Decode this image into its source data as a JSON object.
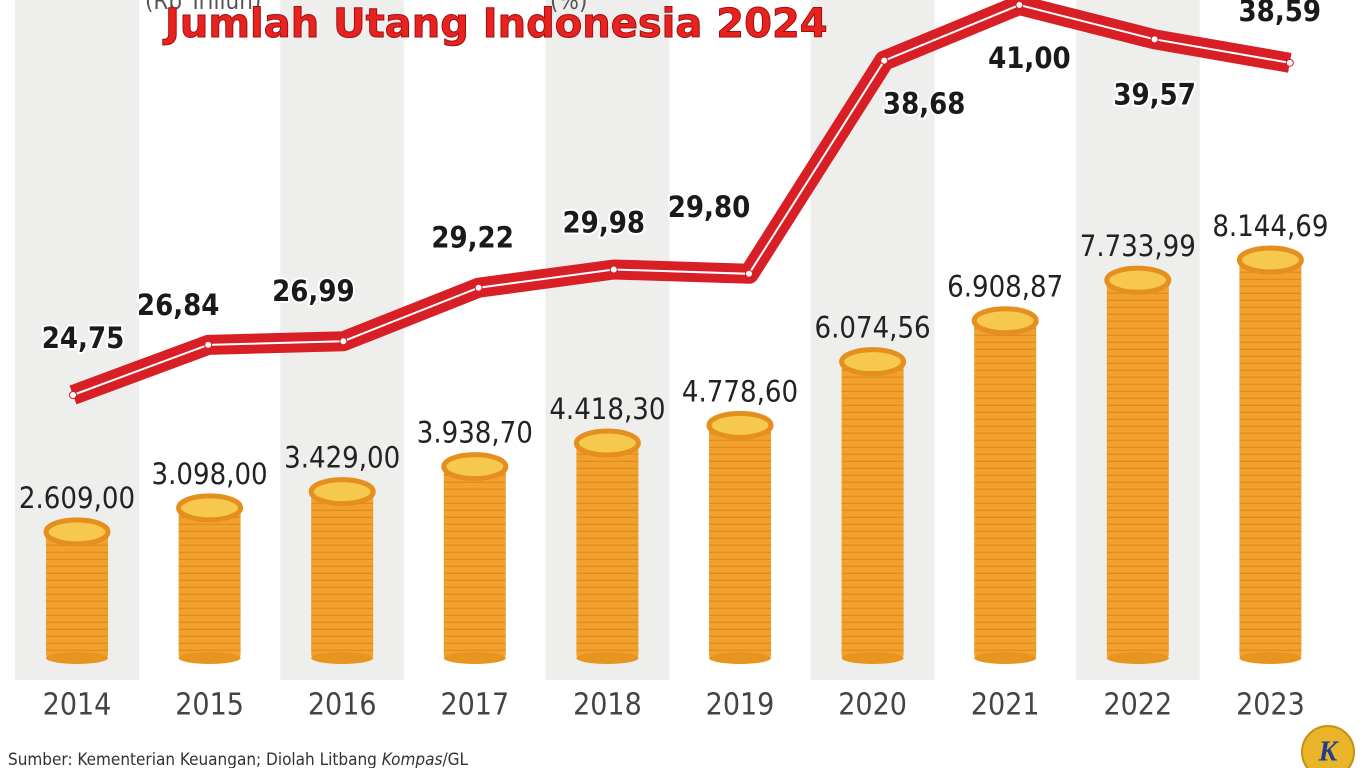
{
  "chart_data": {
    "type": "bar",
    "title": "Jumlah Utang Indonesia 2024",
    "categories": [
      "2014",
      "2015",
      "2016",
      "2017",
      "2018",
      "2019",
      "2020",
      "2021",
      "2022",
      "2023"
    ],
    "series": [
      {
        "name": "(Rp Triliun)",
        "type": "bar",
        "color": "#f2a22c",
        "values": [
          2609.0,
          3098.0,
          3429.0,
          3938.7,
          4418.3,
          4778.6,
          6074.56,
          6908.87,
          7733.99,
          8144.69
        ],
        "value_labels": [
          "2.609,00",
          "3.098,00",
          "3.429,00",
          "3.938,70",
          "4.418,30",
          "4.778,60",
          "6.074,56",
          "6.908,87",
          "7.733,99",
          "8.144,69"
        ]
      },
      {
        "name": "(%)",
        "type": "line",
        "color": "#d81f26",
        "values": [
          24.75,
          26.84,
          26.99,
          29.22,
          29.98,
          29.8,
          38.68,
          41.0,
          39.57,
          38.59
        ],
        "value_labels": [
          "24,75",
          "26,84",
          "26,99",
          "29,22",
          "29,98",
          "29,80",
          "38,68",
          "41,00",
          "39,57",
          "38,59"
        ]
      }
    ],
    "source": {
      "prefix": "Sumber: Kementerian Keuangan; Diolah Litbang ",
      "italic": "Kompas",
      "suffix": "/GL"
    },
    "logo": "K"
  }
}
